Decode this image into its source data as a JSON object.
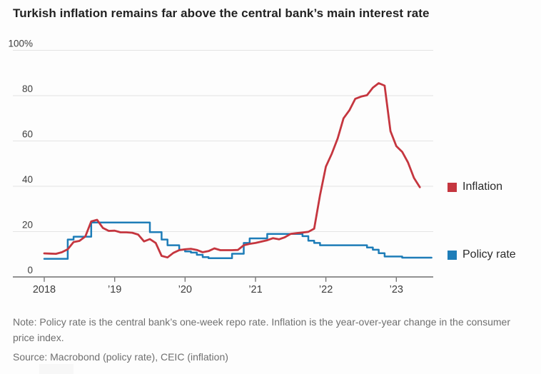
{
  "header": {
    "title": "Turkish inflation remains far above the central bank’s main interest rate"
  },
  "footer": {
    "note": "Note: Policy rate is the central bank’s one-week repo rate. Inflation is the year-over-year change in the consumer price index.",
    "source": "Source: Macrobond (policy rate), CEIC (inflation)"
  },
  "chart_data": {
    "type": "line",
    "title": "Turkish inflation remains far above the central bank’s main interest rate",
    "grid": true,
    "legend_position": "right of plot, each label aligned with its line end",
    "x_axis": {
      "start": "2018-01",
      "interval": "monthly",
      "tick_labels": [
        "2018",
        "’19",
        "’20",
        "’21",
        "’22",
        "’23"
      ],
      "tick_month_indices": [
        0,
        12,
        24,
        36,
        48,
        60
      ]
    },
    "y_axis": {
      "min": 0,
      "max": 100,
      "unit": "percent",
      "ticks": [
        0,
        20,
        40,
        60,
        80,
        100
      ],
      "tick_labels": [
        "0",
        "20",
        "40",
        "60",
        "80",
        "100%"
      ]
    },
    "series": [
      {
        "name": "Inflation",
        "color": "#c5363f",
        "line_style": "smooth",
        "values": [
          10.4,
          10.3,
          10.2,
          10.9,
          12.2,
          15.4,
          15.9,
          17.9,
          24.5,
          25.2,
          21.6,
          20.3,
          20.4,
          19.7,
          19.7,
          19.5,
          18.7,
          15.7,
          16.7,
          15.0,
          9.3,
          8.6,
          10.6,
          11.8,
          12.2,
          12.4,
          11.9,
          10.9,
          11.4,
          12.6,
          11.8,
          11.8,
          11.8,
          11.9,
          14.0,
          14.6,
          15.0,
          15.6,
          16.2,
          17.1,
          16.6,
          17.5,
          19.0,
          19.3,
          19.6,
          19.9,
          21.3,
          36.1,
          48.7,
          54.4,
          61.1,
          70.0,
          73.5,
          78.6,
          79.6,
          80.2,
          83.5,
          85.5,
          84.4,
          64.3,
          57.7,
          55.2,
          50.5,
          43.7,
          39.6
        ]
      },
      {
        "name": "Policy rate",
        "color": "#1e7db8",
        "line_style": "step",
        "values": [
          8,
          8,
          8,
          8,
          16.5,
          17.75,
          17.75,
          17.75,
          24,
          24,
          24,
          24,
          24,
          24,
          24,
          24,
          24,
          24,
          19.75,
          19.75,
          16.5,
          14,
          14,
          12,
          11.25,
          10.75,
          9.75,
          8.75,
          8.25,
          8.25,
          8.25,
          8.25,
          10.25,
          10.25,
          15,
          17,
          17,
          17,
          19,
          19,
          19,
          19,
          19,
          19,
          18,
          16,
          15,
          14,
          14,
          14,
          14,
          14,
          14,
          14,
          14,
          13,
          12,
          10.5,
          9,
          9,
          9,
          8.5,
          8.5,
          8.5,
          8.5,
          8.5,
          8.5
        ]
      }
    ]
  }
}
